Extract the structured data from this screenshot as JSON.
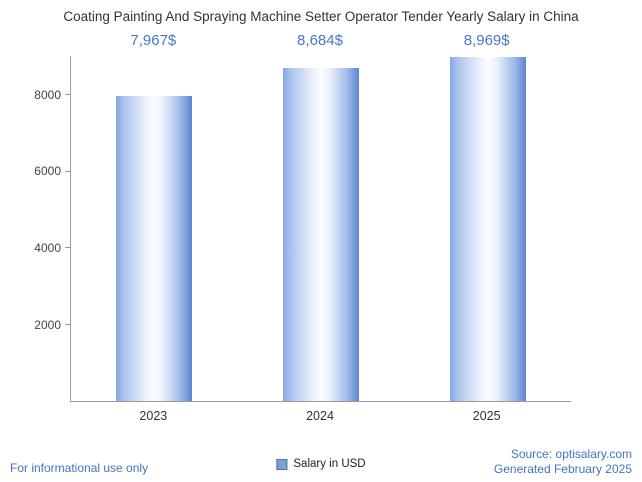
{
  "chart_data": {
    "type": "bar",
    "title": "Coating Painting And Spraying Machine Setter Operator Tender Yearly Salary in China",
    "categories": [
      "2023",
      "2024",
      "2025"
    ],
    "values": [
      7967,
      8684,
      8969
    ],
    "value_labels": [
      "7,967$",
      "8,684$",
      "8,969$"
    ],
    "series_name": "Salary in USD",
    "xlabel": "",
    "ylabel": "",
    "ylim": [
      0,
      9000
    ],
    "yticks": [
      2000,
      4000,
      6000,
      8000
    ],
    "grid": false,
    "legend_position": "bottom"
  },
  "legend": {
    "label": "Salary in USD",
    "swatch_color": "#7ca0d6"
  },
  "footer": {
    "disclaimer": "For informational use only",
    "source": "Source: optisalary.com",
    "generated": "Generated February 2025"
  },
  "colors": {
    "value_label": "#4777cb",
    "footer_text": "#4472c4",
    "bar_edge": "#5f84d3",
    "bar_center": "#fbfdff",
    "axis": "#9a9a9a",
    "title_text": "#333333"
  }
}
